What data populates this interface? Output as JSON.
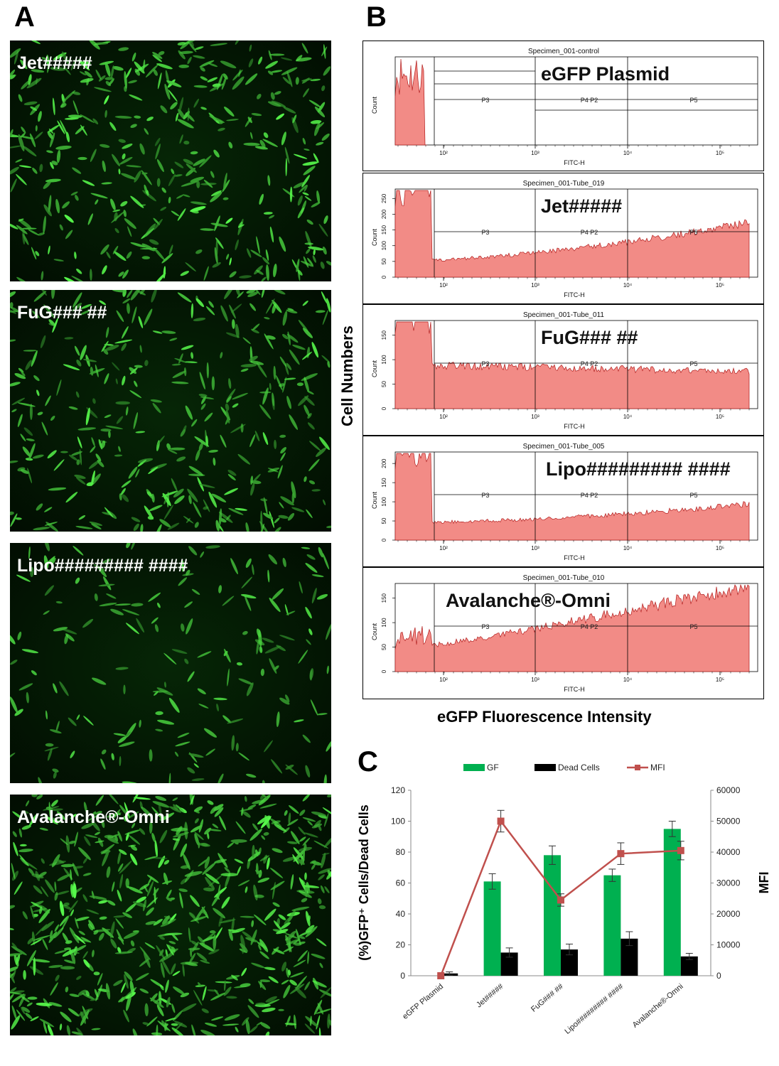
{
  "panel_a": {
    "letter": "A",
    "images": [
      {
        "label": "Jet#####",
        "density": 1.0,
        "brightness": 1.0
      },
      {
        "label": "FuG### ##",
        "density": 0.9,
        "brightness": 0.85
      },
      {
        "label": "Lipo######### ####",
        "density": 0.45,
        "brightness": 0.8
      },
      {
        "label": "Avalanche®-Omni",
        "density": 1.6,
        "brightness": 1.0
      }
    ]
  },
  "panel_b": {
    "letter": "B",
    "y_title": "Cell Numbers",
    "x_title": "eGFP Fluorescence Intensity",
    "plots": [
      {
        "specimen": "Specimen_001-control",
        "overlay": "eGFP Plasmid",
        "y_axis": "Count",
        "x_axis": "FITC-H",
        "gates": [
          "P3",
          "P4 P2",
          "P5"
        ],
        "ticks": [
          "10²",
          "10³",
          "10⁴",
          "10⁵"
        ]
      },
      {
        "specimen": "Specimen_001-Tube_019",
        "overlay": "Jet#####",
        "y_axis": "Count",
        "x_axis": "FITC-H",
        "gates": [
          "P3",
          "P4 P2",
          "P5"
        ],
        "ticks": [
          "10²",
          "10³",
          "10⁴",
          "10⁵"
        ],
        "yticks": [
          "0",
          "50",
          "100",
          "150",
          "200",
          "250"
        ]
      },
      {
        "specimen": "Specimen_001-Tube_011",
        "overlay": "FuG### ##",
        "y_axis": "Count",
        "x_axis": "FITC-H",
        "gates": [
          "P3",
          "P4 P2",
          "P5"
        ],
        "ticks": [
          "10²",
          "10³",
          "10⁴",
          "10⁵"
        ],
        "yticks": [
          "0",
          "50",
          "100",
          "150"
        ]
      },
      {
        "specimen": "Specimen_001-Tube_005",
        "overlay": "Lipo######### ####",
        "y_axis": "Count",
        "x_axis": "FITC-H",
        "gates": [
          "P3",
          "P4 P2",
          "P5"
        ],
        "ticks": [
          "10²",
          "10³",
          "10⁴",
          "10⁵"
        ],
        "yticks": [
          "0",
          "50",
          "100",
          "150",
          "200"
        ]
      },
      {
        "specimen": "Specimen_001-Tube_010",
        "overlay": "Avalanche®-Omni",
        "y_axis": "Count",
        "x_axis": "FITC-H",
        "gates": [
          "P3",
          "P4 P2",
          "P5"
        ],
        "ticks": [
          "10²",
          "10³",
          "10⁴",
          "10⁵"
        ],
        "yticks": [
          "0",
          "50",
          "100",
          "150"
        ]
      }
    ]
  },
  "chart_data": {
    "type": "bar",
    "panel_letter": "C",
    "categories": [
      "eGFP Plasmid",
      "Jet#####",
      "FuG### ##",
      "Lipo######### ####",
      "Avalanche®-Omni"
    ],
    "series": [
      {
        "name": "GF",
        "kind": "bar",
        "axis": "left",
        "color": "#00b050",
        "values": [
          0,
          61,
          78,
          65,
          95
        ],
        "errors": [
          0,
          5,
          6,
          4,
          5
        ]
      },
      {
        "name": "Dead Cells",
        "kind": "bar",
        "axis": "left",
        "color": "#000000",
        "values": [
          1.5,
          15,
          17,
          24,
          12.5
        ],
        "errors": [
          1,
          3,
          3.5,
          4.5,
          2
        ]
      },
      {
        "name": "MFI",
        "kind": "line",
        "axis": "right",
        "color": "#c0504d",
        "values": [
          0,
          50000,
          24500,
          39500,
          40500
        ],
        "errors": [
          0,
          3500,
          2000,
          3500,
          3000
        ]
      }
    ],
    "ylabel": "(%)GFP⁺ Cells/Dead Cells",
    "y2label": "MFI",
    "ylim": [
      0,
      120
    ],
    "y2lim": [
      0,
      60000
    ],
    "yticks": [
      "0",
      "20",
      "40",
      "60",
      "80",
      "100",
      "120"
    ],
    "y2ticks": [
      "0",
      "10000",
      "20000",
      "30000",
      "40000",
      "50000",
      "60000"
    ],
    "legend": "top",
    "grid": false
  }
}
